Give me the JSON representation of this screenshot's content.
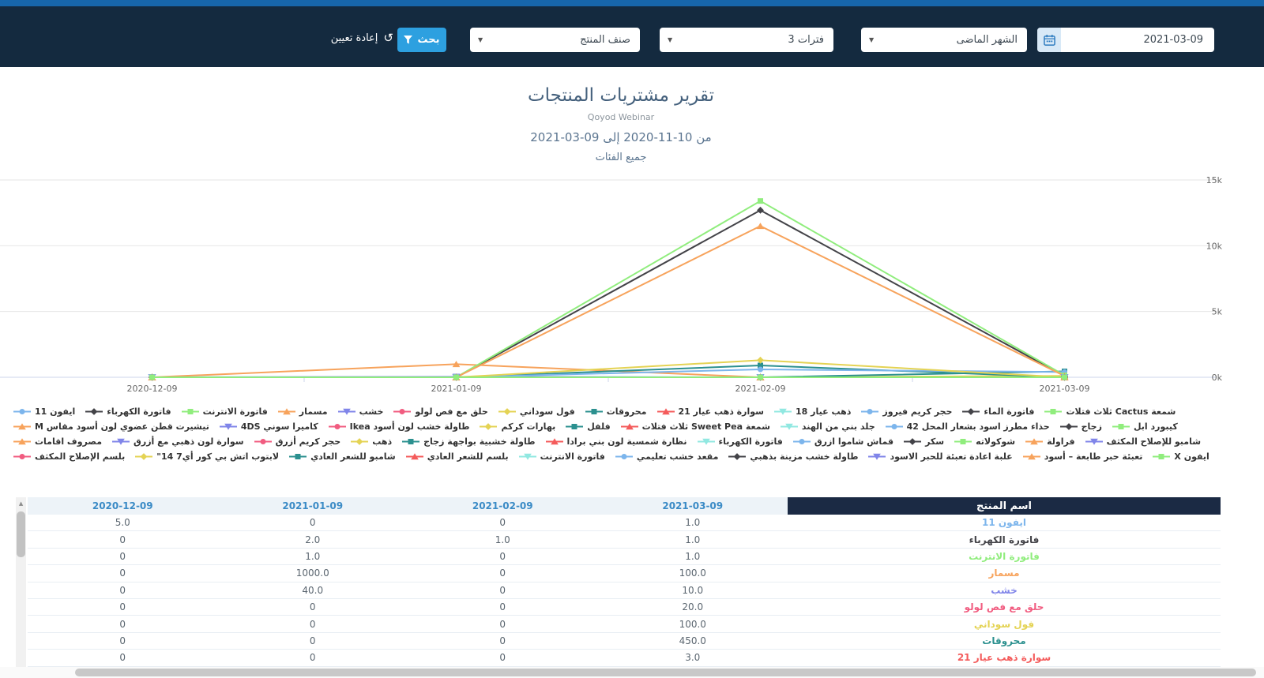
{
  "topbar": {
    "date_value": "2021-03-09",
    "period_label": "الشهر الماضى",
    "intervals_label": "3 فترات",
    "product_category_label": "صنف المنتج",
    "search_label": "بحث",
    "reset_label": "إعادة تعيين",
    "icons": {
      "date": "calendar-icon",
      "dropdowns": "caret-down-icon",
      "search": "filter-icon",
      "reset": "reset-icon"
    }
  },
  "report": {
    "title": "تقرير مشتريات المنتجات",
    "subtitle": "Qoyod Webinar",
    "date_range": "من 10-11-2020 إلى 09-03-2021",
    "category_scope": "جميع الفئات"
  },
  "colors": {
    "top_strip": "#1766ab",
    "topbar_bg": "#142a3f",
    "accent_blue": "#2da0e0",
    "grid_line": "#e6e6e6",
    "axis_line": "#ccd6eb",
    "axis_text": "#666666",
    "header_date_bg": "#edf3f8",
    "header_date_text": "#3b8bc6",
    "name_header_bg": "#1b2a44",
    "palette": [
      "#7cb5ec",
      "#434348",
      "#90ed7d",
      "#f7a35c",
      "#8085e9",
      "#f15c80",
      "#e4d354",
      "#2b908f",
      "#f45b5b",
      "#91e8e1"
    ]
  },
  "chart_data": {
    "type": "line",
    "categories": [
      "2020-12-09",
      "2021-01-09",
      "2021-02-09",
      "2021-03-09"
    ],
    "ylim": [
      0,
      15000
    ],
    "y_ticks": [
      {
        "value": 0,
        "label": "0k"
      },
      {
        "value": 5000,
        "label": "5k"
      },
      {
        "value": 10000,
        "label": "10k"
      },
      {
        "value": 15000,
        "label": "15k"
      }
    ],
    "grid": "horizontal",
    "legend_position": "bottom",
    "y_axis_side": "right",
    "series": [
      {
        "name": "ايفون 11",
        "color": "#7cb5ec",
        "marker": "circle",
        "values": [
          5,
          0,
          0,
          1
        ]
      },
      {
        "name": "فاتورة الكهرباء",
        "color": "#434348",
        "marker": "diamond",
        "values": [
          0,
          2,
          1,
          1
        ]
      },
      {
        "name": "فاتورة الانترنت",
        "color": "#90ed7d",
        "marker": "square",
        "values": [
          0,
          1,
          0,
          1
        ]
      },
      {
        "name": "مسمار",
        "color": "#f7a35c",
        "marker": "triangle",
        "values": [
          0,
          1000,
          0,
          100
        ]
      },
      {
        "name": "خشب",
        "color": "#8085e9",
        "marker": "triangle-down",
        "values": [
          0,
          40,
          0,
          10
        ]
      },
      {
        "name": "حلق مع فص لولو",
        "color": "#f15c80",
        "marker": "circle",
        "values": [
          0,
          0,
          0,
          20
        ]
      },
      {
        "name": "فول سوداني",
        "color": "#e4d354",
        "marker": "diamond",
        "values": [
          0,
          0,
          0,
          100
        ]
      },
      {
        "name": "محروقات",
        "color": "#2b908f",
        "marker": "square",
        "values": [
          0,
          0,
          0,
          450
        ]
      },
      {
        "name": "سوارة ذهب عيار 21",
        "color": "#f45b5b",
        "marker": "triangle",
        "values": [
          0,
          0,
          0,
          3
        ]
      },
      {
        "name": "ذهب عيار 18",
        "color": "#91e8e1",
        "marker": "triangle-down",
        "values": [
          0,
          0,
          0,
          0
        ]
      },
      {
        "name": "حجر كريم فيروز",
        "color": "#7cb5ec",
        "marker": "circle",
        "values": [
          0,
          0,
          0,
          0
        ]
      },
      {
        "name": "فاتورة الماء",
        "color": "#434348",
        "marker": "diamond",
        "values": [
          0,
          0,
          0,
          0
        ]
      },
      {
        "name": "شمعة Cactus ثلاث فتلات",
        "color": "#90ed7d",
        "marker": "square",
        "values": [
          0,
          0,
          0,
          0
        ]
      },
      {
        "name": "تيشيرت قطن عضوي لون أسود مقاس M",
        "color": "#f7a35c",
        "marker": "triangle",
        "values": [
          0,
          0,
          0,
          0
        ]
      },
      {
        "name": "كاميرا سوني 4DS",
        "color": "#8085e9",
        "marker": "triangle-down",
        "values": [
          0,
          0,
          0,
          0
        ]
      },
      {
        "name": "طاولة خشب لون أسود Ikea",
        "color": "#f15c80",
        "marker": "circle",
        "values": [
          0,
          0,
          0,
          0
        ]
      },
      {
        "name": "بهارات كركم",
        "color": "#e4d354",
        "marker": "diamond",
        "values": [
          0,
          0,
          0,
          0
        ]
      },
      {
        "name": "فلفل",
        "color": "#2b908f",
        "marker": "square",
        "values": [
          0,
          0,
          900,
          0
        ]
      },
      {
        "name": "شمعة Sweet Pea ثلاث فتلات",
        "color": "#f45b5b",
        "marker": "triangle",
        "values": [
          0,
          0,
          0,
          0
        ]
      },
      {
        "name": "جلد بني من الهند",
        "color": "#91e8e1",
        "marker": "triangle-down",
        "values": [
          0,
          0,
          0,
          0
        ]
      },
      {
        "name": "حذاء مطرز اسود بشعار المحل 42",
        "color": "#7cb5ec",
        "marker": "circle",
        "values": [
          0,
          0,
          600,
          400
        ]
      },
      {
        "name": "زجاج",
        "color": "#434348",
        "marker": "diamond",
        "values": [
          0,
          0,
          12700,
          100
        ]
      },
      {
        "name": "كيبورد ابل",
        "color": "#90ed7d",
        "marker": "square",
        "values": [
          0,
          0,
          13400,
          150
        ]
      },
      {
        "name": "مصروف اقامات",
        "color": "#f7a35c",
        "marker": "triangle",
        "values": [
          0,
          0,
          11500,
          100
        ]
      },
      {
        "name": "سوارة لون ذهبي مع أزرق",
        "color": "#8085e9",
        "marker": "triangle-down",
        "values": [
          0,
          0,
          0,
          0
        ]
      },
      {
        "name": "حجر كريم أزرق",
        "color": "#f15c80",
        "marker": "circle",
        "values": [
          0,
          0,
          0,
          0
        ]
      },
      {
        "name": "ذهب",
        "color": "#e4d354",
        "marker": "diamond",
        "values": [
          0,
          0,
          1300,
          0
        ]
      },
      {
        "name": "طاولة خشبية بواجهة زجاج",
        "color": "#2b908f",
        "marker": "square",
        "values": [
          0,
          0,
          0,
          0
        ]
      },
      {
        "name": "نظارة شمسية لون بني برادا",
        "color": "#f45b5b",
        "marker": "triangle",
        "values": [
          0,
          0,
          0,
          0
        ]
      },
      {
        "name": "فاتورة الكهرباء",
        "color": "#91e8e1",
        "marker": "triangle-down",
        "values": [
          0,
          0,
          0,
          0
        ]
      },
      {
        "name": "قماش شاموا ازرق",
        "color": "#7cb5ec",
        "marker": "circle",
        "values": [
          0,
          0,
          0,
          0
        ]
      },
      {
        "name": "سكر",
        "color": "#434348",
        "marker": "diamond",
        "values": [
          0,
          0,
          0,
          0
        ]
      },
      {
        "name": "شوكولاته",
        "color": "#90ed7d",
        "marker": "square",
        "values": [
          0,
          0,
          0,
          0
        ]
      },
      {
        "name": "فراولة",
        "color": "#f7a35c",
        "marker": "triangle",
        "values": [
          0,
          0,
          0,
          0
        ]
      },
      {
        "name": "شامبو للإصلاح المكثف",
        "color": "#8085e9",
        "marker": "triangle-down",
        "values": [
          0,
          0,
          0,
          0
        ]
      },
      {
        "name": "بلسم الإصلاح المكثف",
        "color": "#f15c80",
        "marker": "circle",
        "values": [
          0,
          0,
          0,
          0
        ]
      },
      {
        "name": "لابتوب اتش بي كور أي7 14\"",
        "color": "#e4d354",
        "marker": "diamond",
        "values": [
          0,
          0,
          0,
          0
        ]
      },
      {
        "name": "شامبو للشعر العادي",
        "color": "#2b908f",
        "marker": "square",
        "values": [
          0,
          0,
          0,
          0
        ]
      },
      {
        "name": "بلسم للشعر العادي",
        "color": "#f45b5b",
        "marker": "triangle",
        "values": [
          0,
          0,
          0,
          0
        ]
      },
      {
        "name": "فاتورة الانترنت",
        "color": "#91e8e1",
        "marker": "triangle-down",
        "values": [
          0,
          0,
          0,
          0
        ]
      },
      {
        "name": "مقعد خشب تعليمي",
        "color": "#7cb5ec",
        "marker": "circle",
        "values": [
          0,
          0,
          0,
          0
        ]
      },
      {
        "name": "طاولة خشب مزينة بذهبي",
        "color": "#434348",
        "marker": "diamond",
        "values": [
          0,
          0,
          0,
          0
        ]
      },
      {
        "name": "علبة اعادة تعبئة للحبر الاسود",
        "color": "#8085e9",
        "marker": "triangle-down",
        "values": [
          0,
          0,
          0,
          0
        ]
      },
      {
        "name": "تعبئة حبر طابعة – أسود",
        "color": "#f7a35c",
        "marker": "triangle",
        "values": [
          0,
          0,
          0,
          0
        ]
      },
      {
        "name": "ايفون X",
        "color": "#90ed7d",
        "marker": "square",
        "values": [
          0,
          0,
          0,
          0
        ]
      }
    ]
  },
  "table": {
    "date_columns": [
      "2020-12-09",
      "2021-01-09",
      "2021-02-09",
      "2021-03-09"
    ],
    "name_column_label": "اسم المنتج",
    "rows": [
      {
        "values": [
          "5.0",
          "0",
          "0",
          "1.0"
        ],
        "name": "ايفون 11",
        "color": "#7cb5ec"
      },
      {
        "values": [
          "0",
          "2.0",
          "1.0",
          "1.0"
        ],
        "name": "فاتورة الكهرباء",
        "color": "#434348"
      },
      {
        "values": [
          "0",
          "1.0",
          "0",
          "1.0"
        ],
        "name": "فاتورة الانترنت",
        "color": "#90ed7d"
      },
      {
        "values": [
          "0",
          "1000.0",
          "0",
          "100.0"
        ],
        "name": "مسمار",
        "color": "#f7a35c"
      },
      {
        "values": [
          "0",
          "40.0",
          "0",
          "10.0"
        ],
        "name": "خشب",
        "color": "#8085e9"
      },
      {
        "values": [
          "0",
          "0",
          "0",
          "20.0"
        ],
        "name": "حلق مع فص لولو",
        "color": "#f15c80"
      },
      {
        "values": [
          "0",
          "0",
          "0",
          "100.0"
        ],
        "name": "فول سوداني",
        "color": "#e4d354"
      },
      {
        "values": [
          "0",
          "0",
          "0",
          "450.0"
        ],
        "name": "محروقات",
        "color": "#2b908f"
      },
      {
        "values": [
          "0",
          "0",
          "0",
          "3.0"
        ],
        "name": "سوارة ذهب عيار 21",
        "color": "#f45b5b"
      }
    ]
  }
}
